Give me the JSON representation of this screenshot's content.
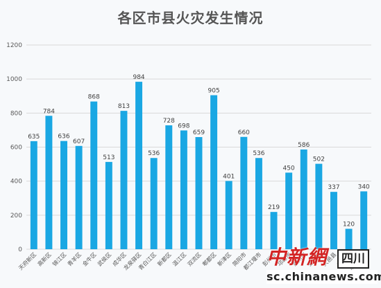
{
  "chart_data": {
    "type": "bar",
    "title": "各区市县火灾发生情况",
    "categories": [
      "天府新区",
      "高新区",
      "锦江区",
      "青羊区",
      "金牛区",
      "武侯区",
      "成华区",
      "龙泉驿区",
      "青白江区",
      "新都区",
      "温江区",
      "双流区",
      "郫都区",
      "新津区",
      "简阳市",
      "都江堰市",
      "彭州市",
      "邛崃市",
      "崇州市",
      "金堂县",
      "大邑县",
      "蒲江县",
      "东部新区"
    ],
    "values": [
      635,
      784,
      636,
      607,
      868,
      513,
      813,
      984,
      536,
      728,
      698,
      659,
      905,
      401,
      660,
      536,
      219,
      450,
      586,
      502,
      337,
      120,
      340
    ],
    "ylim": [
      0,
      1200
    ],
    "yticks": [
      0,
      200,
      400,
      600,
      800,
      1000,
      1200
    ],
    "grid": true,
    "bar_color": "#1aa7e3",
    "xlabel": "",
    "ylabel": ""
  },
  "watermark": {
    "brand": "中新網",
    "region": "四川",
    "domain": "sc.chinanews.com",
    "brand_color": "#d32424"
  }
}
